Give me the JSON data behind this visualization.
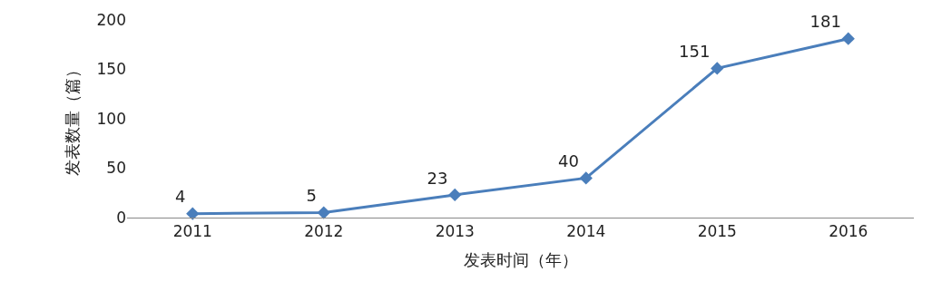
{
  "chart_data": {
    "type": "line",
    "xlabel": "发表时间（年）",
    "ylabel": "发表数量（篇）",
    "categories": [
      "2011",
      "2012",
      "2013",
      "2014",
      "2015",
      "2016"
    ],
    "series": [
      {
        "color": "#4a7ebb",
        "values": [
          4,
          5,
          23,
          40,
          151,
          181
        ]
      }
    ],
    "ylim": [
      0,
      200
    ],
    "yticks": [
      0,
      50,
      100,
      150,
      200
    ],
    "legend": false,
    "marker": "diamond",
    "line_style": "solid",
    "data_labels": true
  }
}
